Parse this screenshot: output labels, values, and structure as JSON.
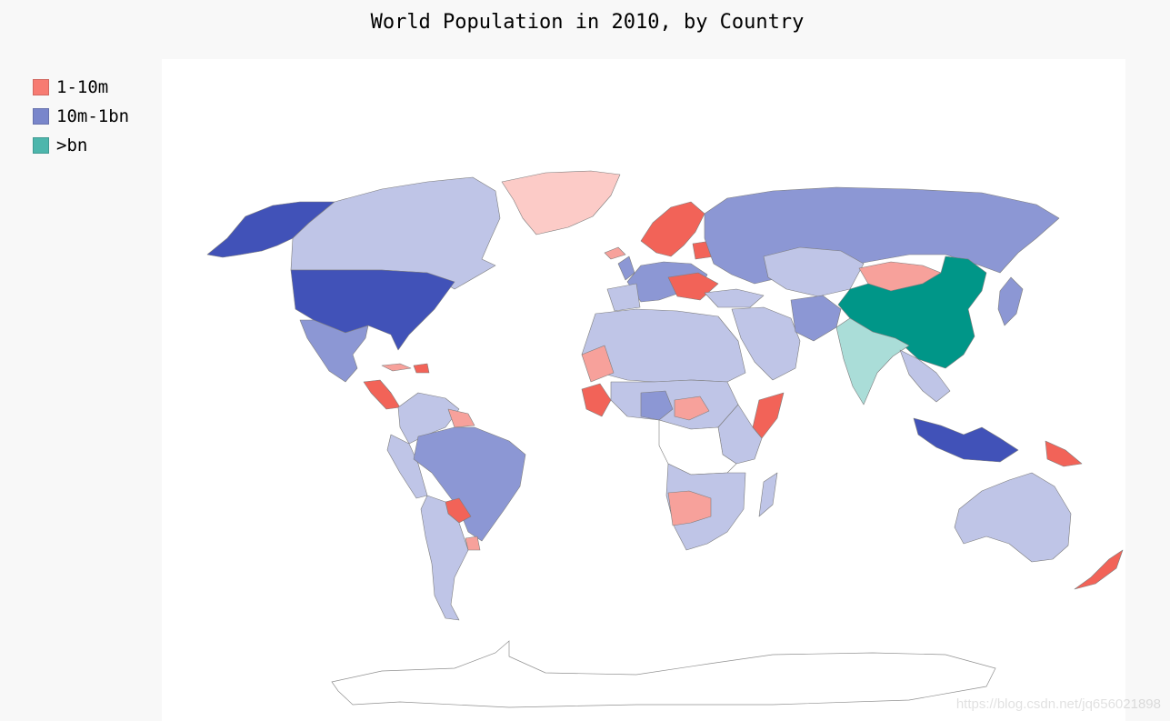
{
  "title": "World Population in 2010, by Country",
  "legend": [
    {
      "label": "1-10m",
      "color": "#f77b72"
    },
    {
      "label": "10m-1bn",
      "color": "#7986cb"
    },
    {
      "label": ">bn",
      "color": "#4db6ac"
    }
  ],
  "colors": {
    "small_light": "#fccbc7",
    "small_mid": "#f7a19b",
    "small_strong": "#f26358",
    "mid_light": "#bfc5e7",
    "mid_mid": "#8c97d4",
    "mid_strong": "#4152b8",
    "big_light": "#aaddd8",
    "big_strong": "#009688",
    "nodata": "#ffffff"
  },
  "watermark": "https://blog.csdn.net/jq656021898",
  "chart_data": {
    "type": "choropleth",
    "title": "World Population in 2010, by Country",
    "legend": [
      "1-10m",
      "10m-1bn",
      ">bn"
    ],
    "regions": [
      {
        "name": "Canada",
        "group": "10m-1bn",
        "shade": "light"
      },
      {
        "name": "United States",
        "group": "10m-1bn",
        "shade": "strong"
      },
      {
        "name": "Alaska",
        "group": "10m-1bn",
        "shade": "strong"
      },
      {
        "name": "Greenland",
        "group": "1-10m",
        "shade": "light"
      },
      {
        "name": "Mexico",
        "group": "10m-1bn",
        "shade": "mid"
      },
      {
        "name": "Brazil",
        "group": "10m-1bn",
        "shade": "mid"
      },
      {
        "name": "Argentina",
        "group": "10m-1bn",
        "shade": "light"
      },
      {
        "name": "Paraguay",
        "group": "1-10m",
        "shade": "strong"
      },
      {
        "name": "Uruguay",
        "group": "1-10m",
        "shade": "mid"
      },
      {
        "name": "Russia",
        "group": "10m-1bn",
        "shade": "mid"
      },
      {
        "name": "China",
        "group": ">bn",
        "shade": "strong"
      },
      {
        "name": "India",
        "group": ">bn",
        "shade": "light"
      },
      {
        "name": "Mongolia",
        "group": "1-10m",
        "shade": "mid"
      },
      {
        "name": "Kazakhstan",
        "group": "10m-1bn",
        "shade": "light"
      },
      {
        "name": "Indonesia",
        "group": "10m-1bn",
        "shade": "strong"
      },
      {
        "name": "Papua New Guinea",
        "group": "1-10m",
        "shade": "strong"
      },
      {
        "name": "Australia",
        "group": "10m-1bn",
        "shade": "light"
      },
      {
        "name": "New Zealand",
        "group": "1-10m",
        "shade": "strong"
      },
      {
        "name": "Nigeria",
        "group": "10m-1bn",
        "shade": "mid"
      },
      {
        "name": "Somalia",
        "group": "1-10m",
        "shade": "strong"
      },
      {
        "name": "Namibia",
        "group": "1-10m",
        "shade": "mid"
      },
      {
        "name": "Botswana",
        "group": "1-10m",
        "shade": "mid"
      },
      {
        "name": "Central African Republic",
        "group": "1-10m",
        "shade": "mid"
      },
      {
        "name": "Mauritania",
        "group": "1-10m",
        "shade": "mid"
      },
      {
        "name": "Norway",
        "group": "1-10m",
        "shade": "strong"
      },
      {
        "name": "Sweden",
        "group": "1-10m",
        "shade": "strong"
      },
      {
        "name": "Finland",
        "group": "1-10m",
        "shade": "strong"
      }
    ]
  }
}
